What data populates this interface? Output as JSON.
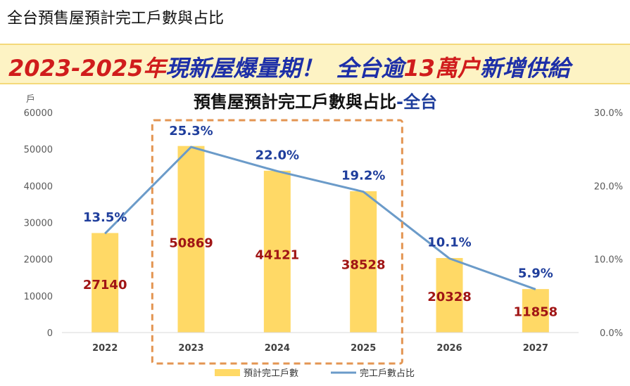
{
  "page_title": "全台預售屋預計完工戶數與占比",
  "banner": {
    "part1": "2023-2025年",
    "part2": "現新屋爆量期！",
    "part3": "全台逾",
    "part4": "13萬户",
    "part5": "新增供給"
  },
  "colors": {
    "bar": "#ffd966",
    "line": "#6b9bc9",
    "box": "#e39552",
    "value_label": "#a01515",
    "pct_label": "#1f3e9c",
    "title_dark": "#111111",
    "title_blue": "#1f3e9c"
  },
  "chart_data": {
    "type": "bar",
    "title_main": "預售屋預計完工戶數與占比",
    "title_suffix": "-全台",
    "ylabel_left": "戶",
    "categories": [
      "2022",
      "2023",
      "2024",
      "2025",
      "2026",
      "2027"
    ],
    "series": [
      {
        "name": "預計完工戶數",
        "type": "bar",
        "axis": "left",
        "values": [
          27140,
          50869,
          44121,
          38528,
          20328,
          11858
        ]
      },
      {
        "name": "完工戶數占比",
        "type": "line",
        "axis": "right",
        "values": [
          13.5,
          25.3,
          22.0,
          19.2,
          10.1,
          5.9
        ],
        "labels": [
          "13.5%",
          "25.3%",
          "22.0%",
          "19.2%",
          "10.1%",
          "5.9%"
        ]
      }
    ],
    "ylim_left": [
      0,
      60000
    ],
    "yticks_left": [
      "0",
      "10000",
      "20000",
      "30000",
      "40000",
      "50000",
      "60000"
    ],
    "ylim_right": [
      0,
      30
    ],
    "yticks_right": [
      "0.0%",
      "10.0%",
      "20.0%",
      "30.0%"
    ],
    "highlight": {
      "from": "2023",
      "to": "2025",
      "style": "dashed box"
    },
    "legend": {
      "position": "bottom"
    },
    "grid": false
  }
}
